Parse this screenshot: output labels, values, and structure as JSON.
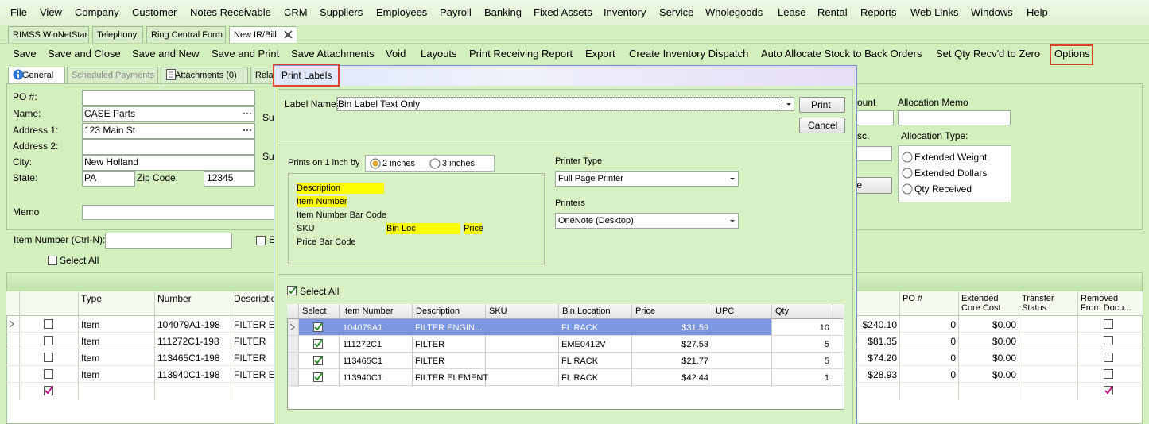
{
  "menu": [
    "File",
    "View",
    "Company",
    "Customer",
    "Notes Receivable",
    "CRM",
    "Suppliers",
    "Employees",
    "Payroll",
    "Banking",
    "Fixed Assets",
    "Inventory",
    "Service",
    "Wholegoods",
    "Lease",
    "Rental",
    "Reports",
    "Web Links",
    "Windows",
    "Help"
  ],
  "tabs": [
    "RIMSS WinNetStar",
    "Telephony",
    "Ring Central Form",
    "New IR/Bill"
  ],
  "toolbar": [
    "Save",
    "Save and Close",
    "Save and New",
    "Save and Print",
    "Save Attachments",
    "Void",
    "Layouts",
    "Print Receiving Report",
    "Export",
    "Create Inventory Dispatch",
    "Auto Allocate Stock to Back Orders",
    "Set Qty Recv'd to Zero",
    "Options"
  ],
  "subtabs": [
    "General",
    "Scheduled Payments",
    "Attachments (0)",
    "Rela"
  ],
  "form": {
    "po_label": "PO #:",
    "name_label": "Name:",
    "name": "CASE Parts",
    "address1_label": "Address 1:",
    "address1": "123 Main St",
    "address2_label": "Address 2:",
    "city_label": "City:",
    "city": "New Holland",
    "state_label": "State:",
    "state": "PA",
    "zip_label": "Zip Code:",
    "zip": "12345",
    "memo_label": "Memo",
    "sup_label_1": "Sup",
    "sup_label_2": "Sup",
    "item_number_label": "Item Number (Ctrl-N):",
    "e_label": "E",
    "select_all": "Select All"
  },
  "allocation": {
    "amount_label": "ount",
    "memo_label": "Allocation Memo",
    "disc_label": "sc.",
    "button": "te",
    "type_label": "Allocation Type:",
    "options": [
      "Extended Weight",
      "Extended Dollars",
      "Qty Received"
    ]
  },
  "grid": {
    "columns_left": [
      "Type",
      "Number",
      "Description"
    ],
    "columns_right": [
      "PO #",
      "Extended Core Cost",
      "Transfer Status",
      "Removed From Docu..."
    ],
    "rows": [
      {
        "type": "Item",
        "number": "104079A1-198",
        "description": "FILTER  EN",
        "amount": "$240.10",
        "po": 0,
        "core": "$0.00"
      },
      {
        "type": "Item",
        "number": "111272C1-198",
        "description": "FILTER",
        "amount": "$81.35",
        "po": 0,
        "core": "$0.00"
      },
      {
        "type": "Item",
        "number": "113465C1-198",
        "description": "FILTER",
        "amount": "$74.20",
        "po": 0,
        "core": "$0.00"
      },
      {
        "type": "Item",
        "number": "113940C1-198",
        "description": "FILTER  EL",
        "amount": "$28.93",
        "po": 0,
        "core": "$0.00"
      }
    ]
  },
  "dialog": {
    "title": "Print Labels",
    "label_name_label": "Label Name:",
    "label_name": "Bin Label Text Only",
    "print": "Print",
    "cancel": "Cancel",
    "prints_on": "Prints on 1 inch by",
    "sizes": [
      "2 inches",
      "3 inches"
    ],
    "fields": [
      "Description",
      "Item Number",
      "Item Number Bar Code",
      "SKU",
      "Bin Loc",
      "Price",
      "Price Bar Code"
    ],
    "printer_type_label": "Printer Type",
    "printer_type": "Full Page Printer",
    "printers_label": "Printers",
    "printer": "OneNote (Desktop)",
    "select_all": "Select All",
    "columns": [
      "Select",
      "Item Number",
      "Description",
      "SKU",
      "Bin Location",
      "Price",
      "UPC",
      "Qty"
    ],
    "rows": [
      {
        "item_number": "104079A1",
        "description": "FILTER  ENGIN...",
        "bin_location": "FL RACK",
        "price": "$31.59",
        "qty": 10
      },
      {
        "item_number": "111272C1",
        "description": "FILTER",
        "bin_location": "EME0412V",
        "price": "$27.53",
        "qty": 5
      },
      {
        "item_number": "113465C1",
        "description": "FILTER",
        "bin_location": "FL RACK",
        "price": "$21.77",
        "qty": 5
      },
      {
        "item_number": "113940C1",
        "description": "FILTER  ELEMENT",
        "bin_location": "FL RACK",
        "price": "$42.44",
        "qty": 1
      }
    ]
  }
}
